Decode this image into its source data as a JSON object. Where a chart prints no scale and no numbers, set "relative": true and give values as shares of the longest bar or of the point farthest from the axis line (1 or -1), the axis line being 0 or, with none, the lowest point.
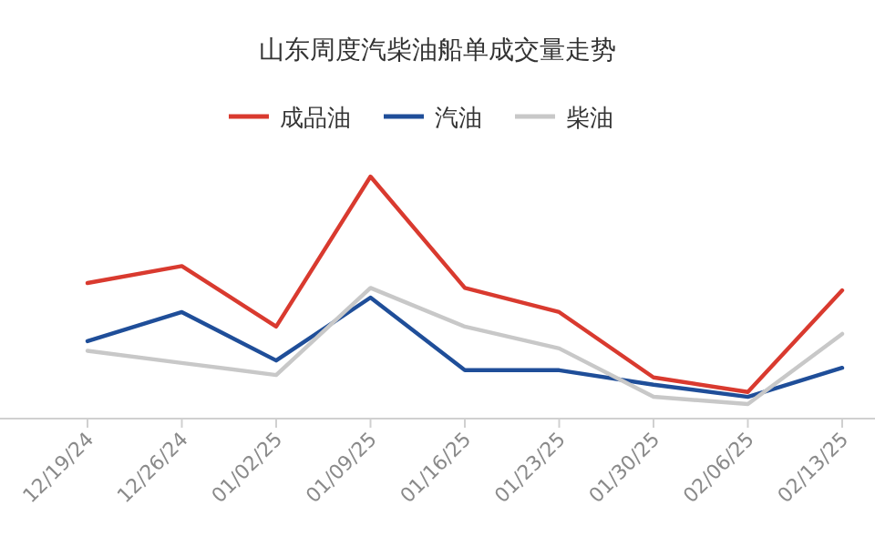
{
  "chart_data": {
    "type": "line",
    "title": "山东周度汽柴油船单成交量走势",
    "relative": true,
    "legend": "top",
    "marker": "none",
    "line_style": "solid",
    "categories": [
      "12/19/24",
      "12/26/24",
      "01/02/25",
      "01/09/25",
      "01/16/25",
      "01/23/25",
      "01/30/25",
      "02/06/25",
      "02/13/25"
    ],
    "series": [
      {
        "name": "成品油",
        "color": "#d93a2f",
        "values": [
          0.56,
          0.63,
          0.38,
          1,
          0.54,
          0.44,
          0.17,
          0.11,
          0.53
        ]
      },
      {
        "name": "汽油",
        "color": "#1f4e99",
        "values": [
          0.32,
          0.44,
          0.24,
          0.5,
          0.2,
          0.2,
          0.14,
          0.09,
          0.21
        ]
      },
      {
        "name": "柴油",
        "color": "#c8c8c8",
        "values": [
          0.28,
          0.23,
          0.18,
          0.54,
          0.38,
          0.29,
          0.09,
          0.06,
          0.35
        ]
      }
    ]
  }
}
